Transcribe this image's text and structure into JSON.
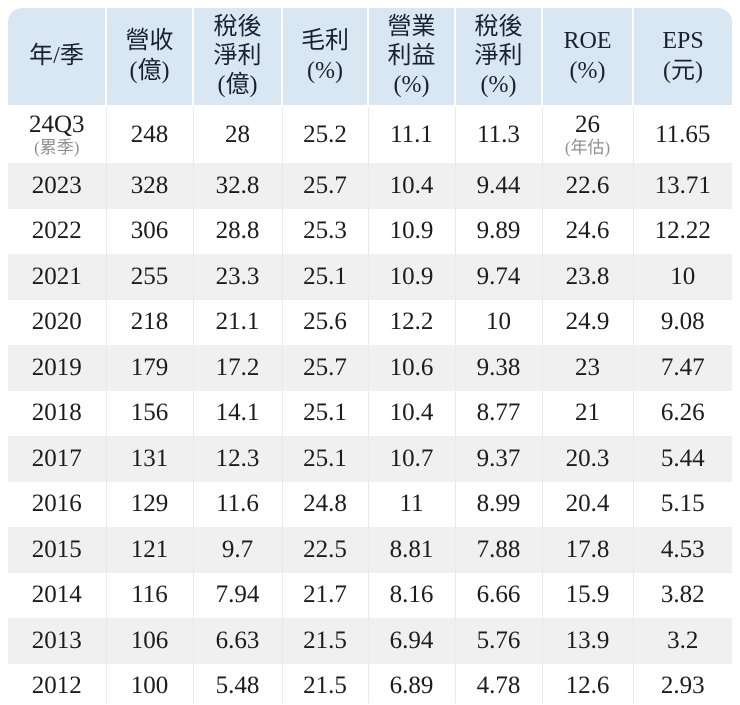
{
  "colors": {
    "page_bg": "#ffffff",
    "header_bg": "#d9e7f3",
    "row_bg": "#ffffff",
    "row_alt_bg": "#f0f0f0",
    "text": "#1c1c1c",
    "note_text": "#8f8f8f",
    "divider": "#eaeaea"
  },
  "chart_data": {
    "type": "table",
    "title": "",
    "columns": [
      {
        "id": "year",
        "label": "年/季"
      },
      {
        "id": "revenue",
        "label": "營收\n(億)"
      },
      {
        "id": "net_profit",
        "label": "稅後\n淨利\n(億)"
      },
      {
        "id": "gross",
        "label": "毛利\n(%)"
      },
      {
        "id": "op_margin",
        "label": "營業\n利益\n(%)"
      },
      {
        "id": "net_margin",
        "label": "稅後\n淨利\n(%)"
      },
      {
        "id": "roe",
        "label": "ROE\n(%)"
      },
      {
        "id": "eps",
        "label": "EPS\n(元)"
      }
    ],
    "rows": [
      {
        "year": "24Q3",
        "year_note": "(累季)",
        "revenue": "248",
        "net_profit": "28",
        "gross": "25.2",
        "op_margin": "11.1",
        "net_margin": "11.3",
        "roe": "26",
        "roe_note": "(年估)",
        "eps": "11.65"
      },
      {
        "year": "2023",
        "revenue": "328",
        "net_profit": "32.8",
        "gross": "25.7",
        "op_margin": "10.4",
        "net_margin": "9.44",
        "roe": "22.6",
        "eps": "13.71"
      },
      {
        "year": "2022",
        "revenue": "306",
        "net_profit": "28.8",
        "gross": "25.3",
        "op_margin": "10.9",
        "net_margin": "9.89",
        "roe": "24.6",
        "eps": "12.22"
      },
      {
        "year": "2021",
        "revenue": "255",
        "net_profit": "23.3",
        "gross": "25.1",
        "op_margin": "10.9",
        "net_margin": "9.74",
        "roe": "23.8",
        "eps": "10"
      },
      {
        "year": "2020",
        "revenue": "218",
        "net_profit": "21.1",
        "gross": "25.6",
        "op_margin": "12.2",
        "net_margin": "10",
        "roe": "24.9",
        "eps": "9.08"
      },
      {
        "year": "2019",
        "revenue": "179",
        "net_profit": "17.2",
        "gross": "25.7",
        "op_margin": "10.6",
        "net_margin": "9.38",
        "roe": "23",
        "eps": "7.47"
      },
      {
        "year": "2018",
        "revenue": "156",
        "net_profit": "14.1",
        "gross": "25.1",
        "op_margin": "10.4",
        "net_margin": "8.77",
        "roe": "21",
        "eps": "6.26"
      },
      {
        "year": "2017",
        "revenue": "131",
        "net_profit": "12.3",
        "gross": "25.1",
        "op_margin": "10.7",
        "net_margin": "9.37",
        "roe": "20.3",
        "eps": "5.44"
      },
      {
        "year": "2016",
        "revenue": "129",
        "net_profit": "11.6",
        "gross": "24.8",
        "op_margin": "11",
        "net_margin": "8.99",
        "roe": "20.4",
        "eps": "5.15"
      },
      {
        "year": "2015",
        "revenue": "121",
        "net_profit": "9.7",
        "gross": "22.5",
        "op_margin": "8.81",
        "net_margin": "7.88",
        "roe": "17.8",
        "eps": "4.53"
      },
      {
        "year": "2014",
        "revenue": "116",
        "net_profit": "7.94",
        "gross": "21.7",
        "op_margin": "8.16",
        "net_margin": "6.66",
        "roe": "15.9",
        "eps": "3.82"
      },
      {
        "year": "2013",
        "revenue": "106",
        "net_profit": "6.63",
        "gross": "21.5",
        "op_margin": "6.94",
        "net_margin": "5.76",
        "roe": "13.9",
        "eps": "3.2"
      },
      {
        "year": "2012",
        "revenue": "100",
        "net_profit": "5.48",
        "gross": "21.5",
        "op_margin": "6.89",
        "net_margin": "4.78",
        "roe": "12.6",
        "eps": "2.93"
      }
    ]
  }
}
